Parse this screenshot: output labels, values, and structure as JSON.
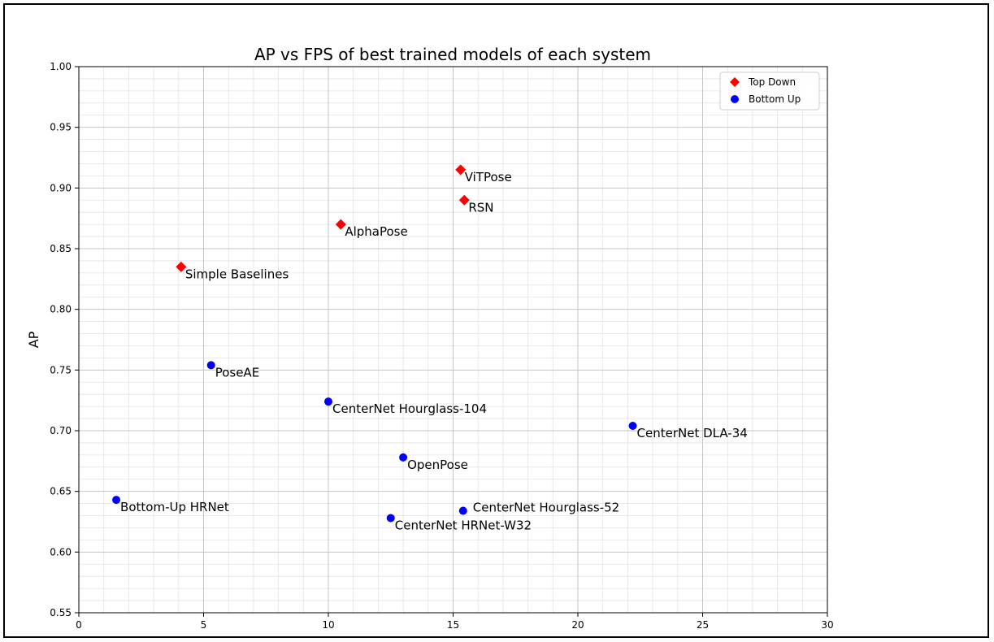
{
  "chart_data": {
    "type": "scatter",
    "title": "AP vs FPS of best trained models of each system",
    "xlabel": "",
    "ylabel": "AP",
    "xlim": [
      0,
      30
    ],
    "ylim": [
      0.55,
      1.0
    ],
    "x_ticks": [
      "0",
      "5",
      "10",
      "15",
      "20",
      "25",
      "30"
    ],
    "y_ticks": [
      "0.55",
      "0.60",
      "0.65",
      "0.70",
      "0.75",
      "0.80",
      "0.85",
      "0.90",
      "0.95",
      "1.00"
    ],
    "grid": true,
    "minor_grid": true,
    "legend_position": "top-right",
    "series": [
      {
        "name": "Top Down",
        "marker": "diamond",
        "color": "#ff0000",
        "points": [
          {
            "label": "ViTPose",
            "x": 15.3,
            "y": 0.915
          },
          {
            "label": "RSN",
            "x": 15.45,
            "y": 0.89
          },
          {
            "label": "AlphaPose",
            "x": 10.5,
            "y": 0.87
          },
          {
            "label": "Simple Baselines",
            "x": 4.1,
            "y": 0.835
          }
        ]
      },
      {
        "name": "Bottom Up",
        "marker": "circle",
        "color": "#0000ff",
        "points": [
          {
            "label": "PoseAE",
            "x": 5.3,
            "y": 0.754
          },
          {
            "label": "CenterNet Hourglass-104",
            "x": 10.0,
            "y": 0.724
          },
          {
            "label": "CenterNet DLA-34",
            "x": 22.2,
            "y": 0.704
          },
          {
            "label": "OpenPose",
            "x": 13.0,
            "y": 0.678
          },
          {
            "label": "Bottom-Up HRNet",
            "x": 1.5,
            "y": 0.643
          },
          {
            "label": "CenterNet Hourglass-52",
            "x": 15.4,
            "y": 0.634
          },
          {
            "label": "CenterNet HRNet-W32",
            "x": 12.5,
            "y": 0.628
          }
        ]
      }
    ]
  }
}
